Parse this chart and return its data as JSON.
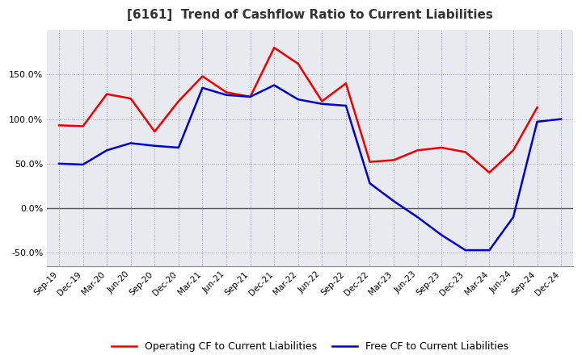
{
  "title": "[6161]  Trend of Cashflow Ratio to Current Liabilities",
  "x_labels": [
    "Sep-19",
    "Dec-19",
    "Mar-20",
    "Jun-20",
    "Sep-20",
    "Dec-20",
    "Mar-21",
    "Jun-21",
    "Sep-21",
    "Dec-21",
    "Mar-22",
    "Jun-22",
    "Sep-22",
    "Dec-22",
    "Mar-23",
    "Jun-23",
    "Sep-23",
    "Dec-23",
    "Mar-24",
    "Jun-24",
    "Sep-24",
    "Dec-24"
  ],
  "operating_cf": [
    93,
    92,
    128,
    123,
    86,
    120,
    148,
    130,
    125,
    180,
    162,
    120,
    140,
    52,
    54,
    65,
    68,
    63,
    40,
    65,
    113,
    null
  ],
  "free_cf": [
    50,
    49,
    65,
    73,
    70,
    68,
    135,
    127,
    125,
    138,
    122,
    117,
    115,
    28,
    8,
    -10,
    -30,
    -47,
    -47,
    -10,
    97,
    100
  ],
  "ylim": [
    -65,
    200
  ],
  "yticks": [
    -50,
    0,
    50,
    100,
    150
  ],
  "operating_color": "#EE0000",
  "free_color": "#0000CC",
  "plot_bg_color": "#E8EAF0",
  "background_color": "#FFFFFF",
  "grid_color": "#9999BB",
  "legend_labels": [
    "Operating CF to Current Liabilities",
    "Free CF to Current Liabilities"
  ]
}
